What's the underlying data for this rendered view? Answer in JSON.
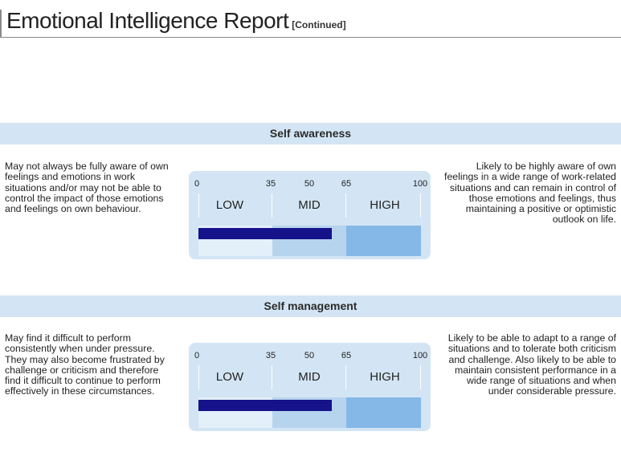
{
  "header": {
    "title": "Emotional Intelligence Report",
    "subtitle": "[Continued]"
  },
  "scale": {
    "ticks": [
      "0",
      "35",
      "50",
      "65",
      "100"
    ],
    "zones": [
      "LOW",
      "MID",
      "HIGH"
    ],
    "colors": {
      "band": "#d3e5f4",
      "low": "#e3eff9",
      "mid": "#b6d4ee",
      "high": "#85b8e6",
      "marker": "#15128a"
    }
  },
  "sections": [
    {
      "heading": "Self awareness",
      "left_text": "May not always be fully aware of own feelings and emotions in work situations and/or may not be able to control the impact of those emotions and feelings on own behaviour.",
      "right_text": "Likely to be highly aware of own feelings in a wide range of work-related situations and can remain in control of those emotions and feelings, thus maintaining a positive or optimistic outlook on life.",
      "score": 60
    },
    {
      "heading": "Self management",
      "left_text": "May find it difficult to perform consistently when under pressure. They may also become frustrated by challenge or criticism and therefore find it difficult to continue to perform effectively in these circumstances.",
      "right_text": "Likely to be able to adapt to a range of situations and to tolerate both criticism and challenge. Also likely to be able to maintain consistent performance in a wide range of situations and when under considerable pressure.",
      "score": 60
    }
  ]
}
